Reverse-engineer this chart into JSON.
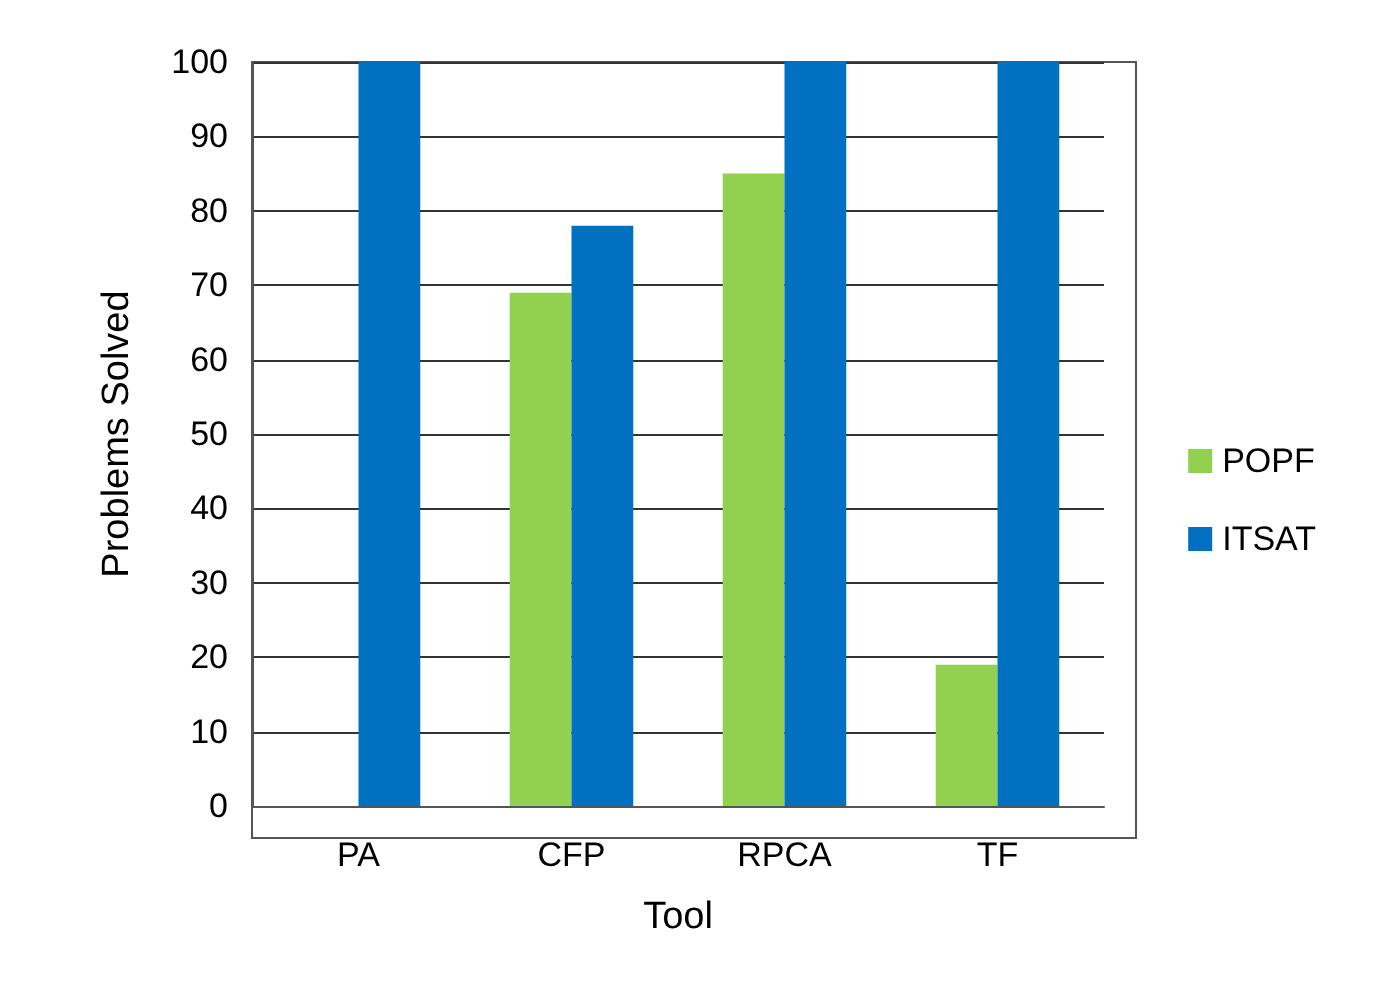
{
  "chart_data": {
    "type": "bar",
    "xlabel": "Tool",
    "ylabel": "Problems Solved",
    "categories": [
      "PA",
      "CFP",
      "RPCA",
      "TF"
    ],
    "series": [
      {
        "name": "POPF",
        "color": "#92d050",
        "values": [
          0,
          69,
          85,
          19
        ]
      },
      {
        "name": "ITSAT",
        "color": "#0070c0",
        "values": [
          100,
          78,
          100,
          100
        ]
      }
    ],
    "ylim": [
      0,
      100
    ],
    "yticks": [
      0,
      10,
      20,
      30,
      40,
      50,
      60,
      70,
      80,
      90,
      100
    ],
    "grid": "y",
    "legend": "right"
  }
}
